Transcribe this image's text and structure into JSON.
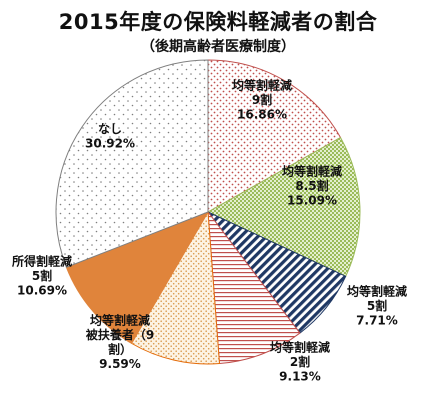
{
  "chart_data": {
    "type": "pie",
    "title": "2015年度の保険料軽減者の割合",
    "subtitle": "（後期高齢者医療制度）",
    "slices": [
      {
        "label_lines": [
          "均等割軽減",
          "9割"
        ],
        "percent_text": "16.86%",
        "value": 16.86,
        "color": "#c0504d",
        "pattern": "red-dots"
      },
      {
        "label_lines": [
          "均等割軽減",
          "8.5割"
        ],
        "percent_text": "15.09%",
        "value": 15.09,
        "color": "#9bbb59",
        "pattern": "green-grid"
      },
      {
        "label_lines": [
          "均等割軽減",
          "5割"
        ],
        "percent_text": "7.71%",
        "value": 7.71,
        "color": "#1f3864",
        "pattern": "navy-diagonal"
      },
      {
        "label_lines": [
          "均等割軽減",
          "2割"
        ],
        "percent_text": "9.13%",
        "value": 9.13,
        "color": "#c0504d",
        "pattern": "red-horizontal"
      },
      {
        "label_lines": [
          "均等割軽減",
          "被扶養者（9",
          "割）"
        ],
        "percent_text": "9.59%",
        "value": 9.59,
        "color": "#e46c0a",
        "pattern": "tan-dots"
      },
      {
        "label_lines": [
          "所得割軽減",
          "5割"
        ],
        "percent_text": "10.69%",
        "value": 10.69,
        "color": "#e0843b",
        "pattern": "solid-orange"
      },
      {
        "label_lines": [
          "なし"
        ],
        "percent_text": "30.92%",
        "value": 30.92,
        "color": "#7f7f7f",
        "pattern": "gray-dots"
      }
    ]
  }
}
